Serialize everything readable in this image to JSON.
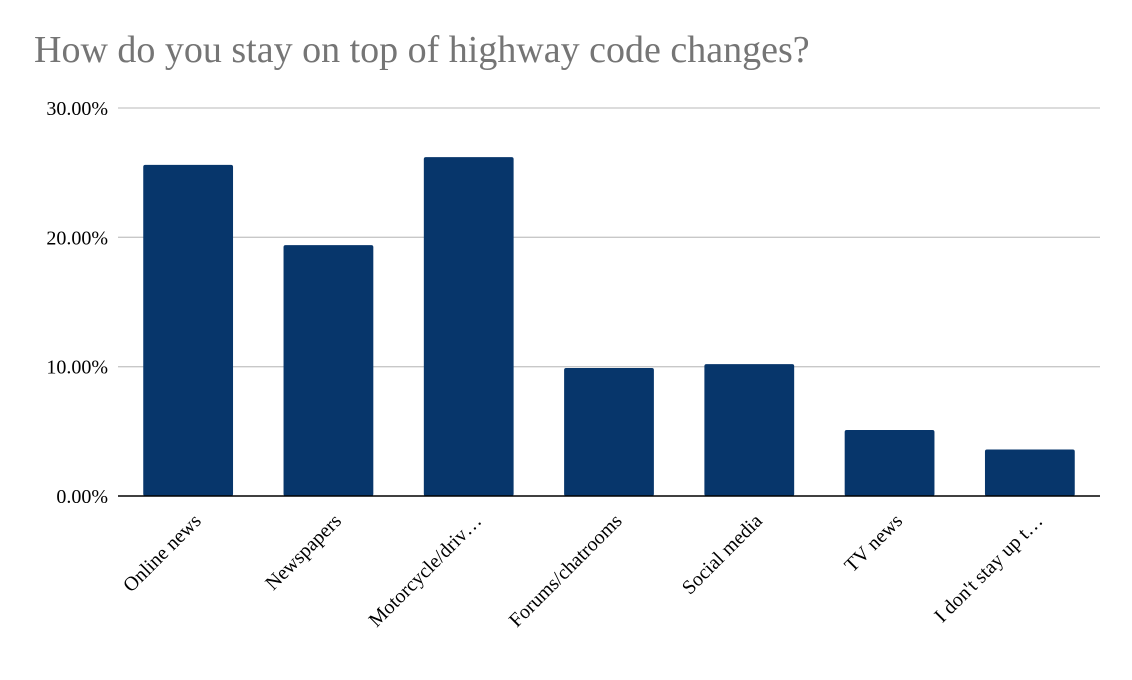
{
  "chart_data": {
    "type": "bar",
    "title": "How do you stay on top of highway code changes?",
    "xlabel": "",
    "ylabel": "",
    "categories": [
      "Online news",
      "Newspapers",
      "Motorcycle/driv…",
      "Forums/chatrooms",
      "Social media",
      "TV news",
      "I don't stay up t…"
    ],
    "values": [
      25.6,
      19.4,
      26.2,
      9.9,
      10.2,
      5.1,
      3.6
    ],
    "ylim": [
      0,
      30
    ],
    "yticks": [
      0,
      10,
      20,
      30
    ],
    "ytick_labels": [
      "0.00%",
      "10.00%",
      "20.00%",
      "30.00%"
    ],
    "grid": true,
    "legend": "none",
    "colors": {
      "bar": "#07366b",
      "grid": "#c8c8c8",
      "axis": "#000000",
      "title": "#757575"
    }
  }
}
